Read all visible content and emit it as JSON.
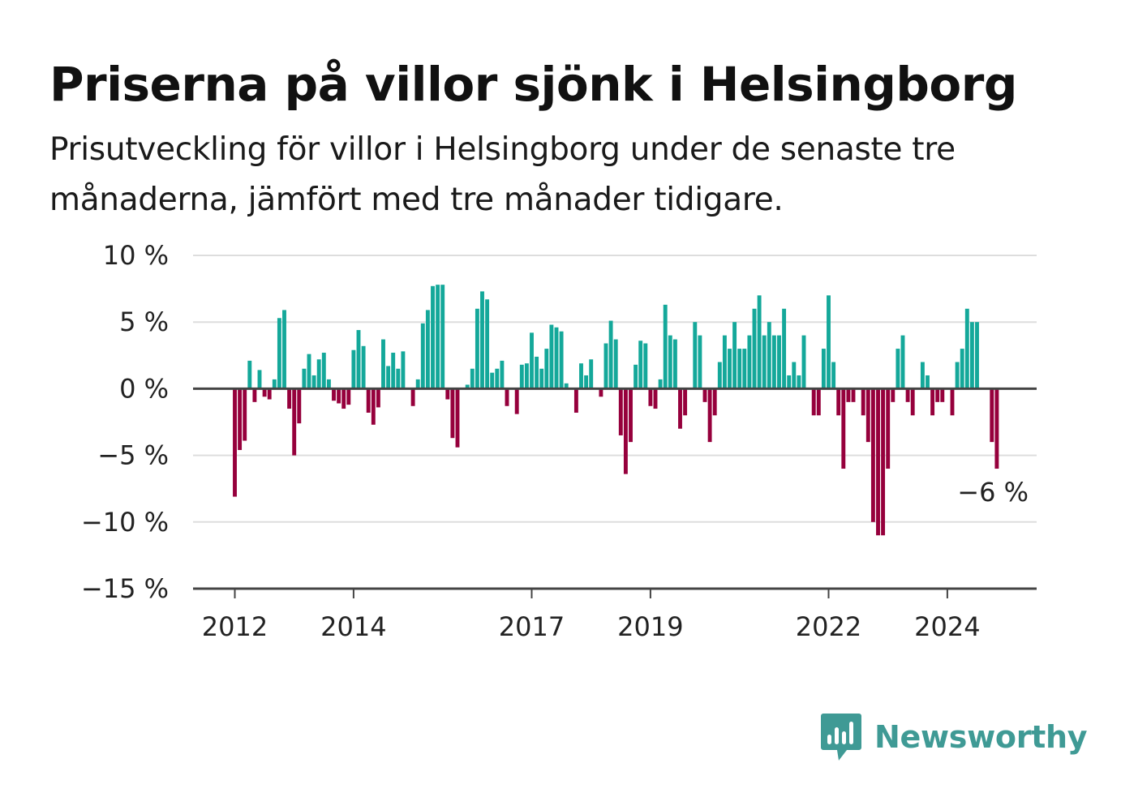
{
  "header": {
    "title": "Priserna på villor sjönk i Helsingborg",
    "subtitle": "Prisutveckling för villor i Helsingborg under de senaste tre månaderna, jämfört med tre månader tidigare."
  },
  "brand": {
    "name": "Newsworthy",
    "color": "#3f9a95",
    "icon": "newsworthy-logo-icon"
  },
  "colors": {
    "positive": "#14a89a",
    "negative": "#96003c",
    "grid": "#dddddd",
    "axis": "#444444"
  },
  "chart_data": {
    "type": "bar",
    "unit": "%",
    "ylim": [
      -15,
      10
    ],
    "y_ticks": [
      10,
      5,
      0,
      -5,
      -10,
      -15
    ],
    "y_tick_labels": [
      "10 %",
      "5 %",
      "0 %",
      "−5 %",
      "−10 %",
      "−15 %"
    ],
    "x_tick_labels": [
      "2012",
      "2014",
      "2017",
      "2019",
      "2022",
      "2024"
    ],
    "x_tick_months": [
      "2012-01",
      "2014-01",
      "2017-01",
      "2019-01",
      "2022-01",
      "2024-01"
    ],
    "grid": true,
    "legend": "none",
    "annotation": {
      "text": "−6 %",
      "month": "2024-11"
    },
    "months": [
      "2011-06",
      "2011-07",
      "2011-08",
      "2011-09",
      "2011-10",
      "2011-11",
      "2011-12",
      "2012-01",
      "2012-02",
      "2012-03",
      "2012-04",
      "2012-05",
      "2012-06",
      "2012-07",
      "2012-08",
      "2012-09",
      "2012-10",
      "2012-11",
      "2012-12",
      "2013-01",
      "2013-02",
      "2013-03",
      "2013-04",
      "2013-05",
      "2013-06",
      "2013-07",
      "2013-08",
      "2013-09",
      "2013-10",
      "2013-11",
      "2013-12",
      "2014-01",
      "2014-02",
      "2014-03",
      "2014-04",
      "2014-05",
      "2014-06",
      "2014-07",
      "2014-08",
      "2014-09",
      "2014-10",
      "2014-11",
      "2014-12",
      "2015-01",
      "2015-02",
      "2015-03",
      "2015-04",
      "2015-05",
      "2015-06",
      "2015-07",
      "2015-08",
      "2015-09",
      "2015-10",
      "2015-11",
      "2015-12",
      "2016-01",
      "2016-02",
      "2016-03",
      "2016-04",
      "2016-05",
      "2016-06",
      "2016-07",
      "2016-08",
      "2016-09",
      "2016-10",
      "2016-11",
      "2016-12",
      "2017-01",
      "2017-02",
      "2017-03",
      "2017-04",
      "2017-05",
      "2017-06",
      "2017-07",
      "2017-08",
      "2017-09",
      "2017-10",
      "2017-11",
      "2017-12",
      "2018-01",
      "2018-02",
      "2018-03",
      "2018-04",
      "2018-05",
      "2018-06",
      "2018-07",
      "2018-08",
      "2018-09",
      "2018-10",
      "2018-11",
      "2018-12",
      "2019-01",
      "2019-02",
      "2019-03",
      "2019-04",
      "2019-05",
      "2019-06",
      "2019-07",
      "2019-08",
      "2019-09",
      "2019-10",
      "2019-11",
      "2019-12",
      "2020-01",
      "2020-02",
      "2020-03",
      "2020-04",
      "2020-05",
      "2020-06",
      "2020-07",
      "2020-08",
      "2020-09",
      "2020-10",
      "2020-11",
      "2020-12",
      "2021-01",
      "2021-02",
      "2021-03",
      "2021-04",
      "2021-05",
      "2021-06",
      "2021-07",
      "2021-08",
      "2021-09",
      "2021-10",
      "2021-11",
      "2021-12",
      "2022-01",
      "2022-02",
      "2022-03",
      "2022-04",
      "2022-05",
      "2022-06",
      "2022-07",
      "2022-08",
      "2022-09",
      "2022-10",
      "2022-11",
      "2022-12",
      "2023-01",
      "2023-02",
      "2023-03",
      "2023-04",
      "2023-05",
      "2023-06",
      "2023-07",
      "2023-08",
      "2023-09",
      "2023-10",
      "2023-11",
      "2023-12",
      "2024-01",
      "2024-02",
      "2024-03",
      "2024-04",
      "2024-05",
      "2024-06",
      "2024-07",
      "2024-08",
      "2024-09",
      "2024-10",
      "2024-11"
    ],
    "values": [
      null,
      null,
      null,
      null,
      null,
      null,
      null,
      -8.1,
      -4.6,
      -3.9,
      2.1,
      -1.0,
      1.4,
      -0.6,
      -0.8,
      0.7,
      5.3,
      5.9,
      -1.5,
      -5.0,
      -2.6,
      1.5,
      2.6,
      1.0,
      2.2,
      2.7,
      0.7,
      -0.9,
      -1.1,
      -1.5,
      -1.2,
      2.9,
      4.4,
      3.2,
      -1.8,
      -2.7,
      -1.4,
      3.7,
      1.7,
      2.7,
      1.5,
      2.8,
      null,
      -1.3,
      0.7,
      4.9,
      5.9,
      7.7,
      7.8,
      7.8,
      -0.8,
      -3.7,
      -4.4,
      null,
      0.3,
      1.5,
      6.0,
      7.3,
      6.7,
      1.2,
      1.5,
      2.1,
      -1.3,
      null,
      -1.9,
      1.8,
      1.9,
      4.2,
      2.4,
      1.5,
      3.0,
      4.8,
      4.6,
      4.3,
      0.4,
      null,
      -1.8,
      1.9,
      1.0,
      2.2,
      null,
      -0.6,
      3.4,
      5.1,
      3.7,
      -3.5,
      -6.4,
      -4.0,
      1.8,
      3.6,
      3.4,
      -1.3,
      -1.5,
      0.7,
      6.3,
      4.0,
      3.7,
      -3.0,
      -2.0,
      null,
      5.0,
      4.0,
      -1.0,
      -4.0,
      -2.0,
      2.0,
      4.0,
      3.0,
      5.0,
      3.0,
      3.0,
      4.0,
      6.0,
      7.0,
      4.0,
      5.0,
      4.0,
      4.0,
      6.0,
      1.0,
      2.0,
      1.0,
      4.0,
      null,
      -2.0,
      -2.0,
      3.0,
      7.0,
      2.0,
      -2.0,
      -6.0,
      -1.0,
      -1.0,
      null,
      -2.0,
      -4.0,
      -10.0,
      -11.0,
      -11.0,
      -6.0,
      -1.0,
      3.0,
      4.0,
      -1.0,
      -2.0,
      null,
      2.0,
      1.0,
      -2.0,
      -1.0,
      -1.0,
      null,
      -2.0,
      2.0,
      3.0,
      6.0,
      5.0,
      5.0,
      null,
      null,
      -4.0,
      -6.0
    ]
  }
}
